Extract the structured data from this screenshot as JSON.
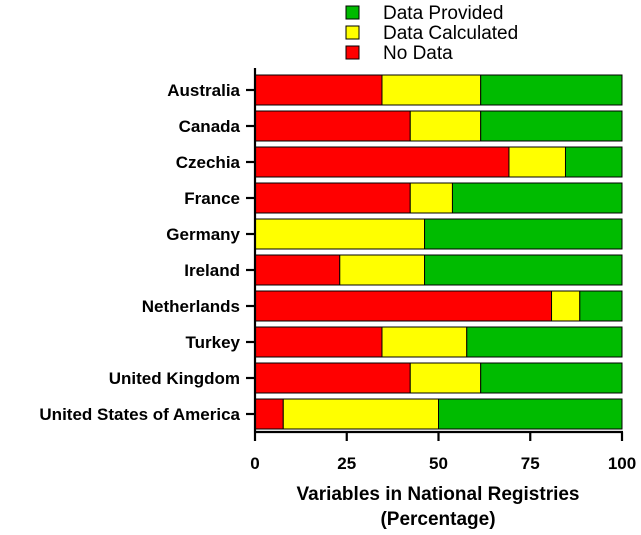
{
  "chart_data": {
    "type": "bar",
    "orientation": "horizontal",
    "stacked": true,
    "categories": [
      "Australia",
      "Canada",
      "Czechia",
      "France",
      "Germany",
      "Ireland",
      "Netherlands",
      "Turkey",
      "United Kingdom",
      "United States of America"
    ],
    "series": [
      {
        "name": "No Data",
        "color": "#ff0000",
        "values": [
          34.6,
          42.3,
          69.2,
          42.3,
          0,
          23.1,
          80.8,
          34.6,
          42.3,
          7.7
        ]
      },
      {
        "name": "Data Calculated",
        "color": "#ffff00",
        "values": [
          26.9,
          19.2,
          15.4,
          11.5,
          46.2,
          23.1,
          7.7,
          23.1,
          19.2,
          42.3
        ]
      },
      {
        "name": "Data Provided",
        "color": "#00bb00",
        "values": [
          38.5,
          38.5,
          15.4,
          46.2,
          53.8,
          53.8,
          11.5,
          42.3,
          38.5,
          50.0
        ]
      }
    ],
    "legend_order": [
      "Data Provided",
      "Data Calculated",
      "No Data"
    ],
    "legend_position": "top",
    "xlabel_lines": [
      "Variables in National Registries",
      "(Percentage)"
    ],
    "xlim": [
      0,
      100
    ],
    "xticks": [
      "0",
      "25",
      "50",
      "75",
      "100"
    ],
    "grid": false
  }
}
